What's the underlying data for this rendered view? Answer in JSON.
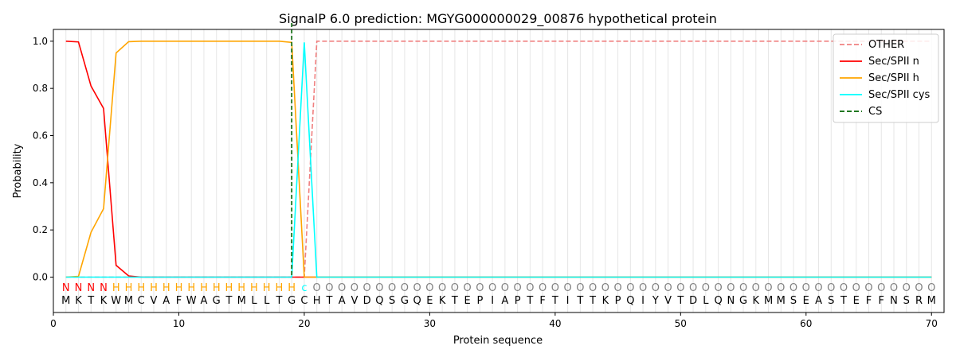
{
  "chart_data": {
    "type": "line",
    "title": "SignalP 6.0 prediction: MGYG000000029_00876 hypothetical protein",
    "xlabel": "Protein sequence",
    "ylabel": "Probability",
    "xlim": [
      0,
      71
    ],
    "ylim": [
      -0.15,
      1.05
    ],
    "xticks": [
      0,
      10,
      20,
      30,
      40,
      50,
      60,
      70
    ],
    "yticks": [
      0.0,
      0.2,
      0.4,
      0.6,
      0.8,
      1.0
    ],
    "grid": "vertical lines at every residue",
    "legend_position": "top-right",
    "sequence": "MKTKWMCVAFWAGTMLLTGCHTAVDQSGQEKTEPIAPTFTITTKPQIYVTDLQNGKMMSEASTEFFNSRM",
    "labels": "NNNNHHHHHHHHHHHHHHHCOOOOOOOOOOOOOOOOOOOOOOOOOOOOOOOOOOOOOOOOOOOOOOOOOO",
    "label_colors": {
      "N": "#ff0000",
      "H": "#ffa500",
      "C": "#00ffff",
      "O": "#808080"
    },
    "series": [
      {
        "name": "OTHER",
        "color": "#f08080",
        "dash": "dashed",
        "x": [
          1,
          2,
          3,
          4,
          5,
          6,
          7,
          8,
          9,
          10,
          11,
          12,
          13,
          14,
          15,
          16,
          17,
          18,
          19,
          20,
          21,
          22,
          23,
          24,
          25,
          26,
          27,
          28,
          29,
          30,
          31,
          32,
          33,
          34,
          35,
          36,
          37,
          38,
          39,
          40,
          41,
          42,
          43,
          44,
          45,
          46,
          47,
          48,
          49,
          50,
          51,
          52,
          53,
          54,
          55,
          56,
          57,
          58,
          59,
          60,
          61,
          62,
          63,
          64,
          65,
          66,
          67,
          68,
          69,
          70
        ],
        "values": [
          0,
          0,
          0,
          0,
          0,
          0,
          0,
          0,
          0,
          0,
          0,
          0,
          0,
          0,
          0,
          0,
          0,
          0,
          0,
          0,
          1.0,
          1.0,
          1.0,
          1.0,
          1.0,
          1.0,
          1.0,
          1.0,
          1.0,
          1.0,
          1.0,
          1.0,
          1.0,
          1.0,
          1.0,
          1.0,
          1.0,
          1.0,
          1.0,
          1.0,
          1.0,
          1.0,
          1.0,
          1.0,
          1.0,
          1.0,
          1.0,
          1.0,
          1.0,
          1.0,
          1.0,
          1.0,
          1.0,
          1.0,
          1.0,
          1.0,
          1.0,
          1.0,
          1.0,
          1.0,
          1.0,
          1.0,
          1.0,
          1.0,
          1.0,
          1.0,
          1.0,
          1.0,
          1.0,
          1.0
        ]
      },
      {
        "name": "Sec/SPII n",
        "color": "#ff0000",
        "dash": "solid",
        "x": [
          1,
          2,
          3,
          4,
          5,
          6,
          7,
          8,
          9,
          10,
          11,
          12,
          13,
          14,
          15,
          16,
          17,
          18,
          19,
          20,
          21,
          22,
          23,
          24,
          25,
          26,
          27,
          28,
          29,
          30,
          31,
          32,
          33,
          34,
          35,
          36,
          37,
          38,
          39,
          40,
          41,
          42,
          43,
          44,
          45,
          46,
          47,
          48,
          49,
          50,
          51,
          52,
          53,
          54,
          55,
          56,
          57,
          58,
          59,
          60,
          61,
          62,
          63,
          64,
          65,
          66,
          67,
          68,
          69,
          70
        ],
        "values": [
          1.0,
          0.997,
          0.81,
          0.715,
          0.05,
          0.005,
          0,
          0,
          0,
          0,
          0,
          0,
          0,
          0,
          0,
          0,
          0,
          0,
          0,
          0,
          0,
          0,
          0,
          0,
          0,
          0,
          0,
          0,
          0,
          0,
          0,
          0,
          0,
          0,
          0,
          0,
          0,
          0,
          0,
          0,
          0,
          0,
          0,
          0,
          0,
          0,
          0,
          0,
          0,
          0,
          0,
          0,
          0,
          0,
          0,
          0,
          0,
          0,
          0,
          0,
          0,
          0,
          0,
          0,
          0,
          0,
          0,
          0,
          0,
          0
        ]
      },
      {
        "name": "Sec/SPII h",
        "color": "#ffa500",
        "dash": "solid",
        "x": [
          1,
          2,
          3,
          4,
          5,
          6,
          7,
          8,
          9,
          10,
          11,
          12,
          13,
          14,
          15,
          16,
          17,
          18,
          19,
          20,
          21,
          22,
          23,
          24,
          25,
          26,
          27,
          28,
          29,
          30,
          31,
          32,
          33,
          34,
          35,
          36,
          37,
          38,
          39,
          40,
          41,
          42,
          43,
          44,
          45,
          46,
          47,
          48,
          49,
          50,
          51,
          52,
          53,
          54,
          55,
          56,
          57,
          58,
          59,
          60,
          61,
          62,
          63,
          64,
          65,
          66,
          67,
          68,
          69,
          70
        ],
        "values": [
          0,
          0.003,
          0.19,
          0.29,
          0.95,
          0.998,
          1.0,
          1.0,
          1.0,
          1.0,
          1.0,
          1.0,
          1.0,
          1.0,
          1.0,
          1.0,
          1.0,
          1.0,
          0.995,
          0,
          0,
          0,
          0,
          0,
          0,
          0,
          0,
          0,
          0,
          0,
          0,
          0,
          0,
          0,
          0,
          0,
          0,
          0,
          0,
          0,
          0,
          0,
          0,
          0,
          0,
          0,
          0,
          0,
          0,
          0,
          0,
          0,
          0,
          0,
          0,
          0,
          0,
          0,
          0,
          0,
          0,
          0,
          0,
          0,
          0,
          0,
          0,
          0,
          0,
          0
        ]
      },
      {
        "name": "Sec/SPII cys",
        "color": "#00ffff",
        "dash": "solid",
        "x": [
          1,
          2,
          3,
          4,
          5,
          6,
          7,
          8,
          9,
          10,
          11,
          12,
          13,
          14,
          15,
          16,
          17,
          18,
          19,
          20,
          21,
          22,
          23,
          24,
          25,
          26,
          27,
          28,
          29,
          30,
          31,
          32,
          33,
          34,
          35,
          36,
          37,
          38,
          39,
          40,
          41,
          42,
          43,
          44,
          45,
          46,
          47,
          48,
          49,
          50,
          51,
          52,
          53,
          54,
          55,
          56,
          57,
          58,
          59,
          60,
          61,
          62,
          63,
          64,
          65,
          66,
          67,
          68,
          69,
          70
        ],
        "values": [
          0,
          0,
          0,
          0,
          0,
          0,
          0,
          0,
          0,
          0,
          0,
          0,
          0,
          0,
          0,
          0,
          0,
          0,
          0,
          0.995,
          0,
          0,
          0,
          0,
          0,
          0,
          0,
          0,
          0,
          0,
          0,
          0,
          0,
          0,
          0,
          0,
          0,
          0,
          0,
          0,
          0,
          0,
          0,
          0,
          0,
          0,
          0,
          0,
          0,
          0,
          0,
          0,
          0,
          0,
          0,
          0,
          0,
          0,
          0,
          0,
          0,
          0,
          0,
          0,
          0,
          0,
          0,
          0,
          0,
          0
        ]
      }
    ],
    "cs": {
      "name": "CS",
      "x": 19,
      "color": "#006400",
      "dash": "dashed"
    }
  }
}
